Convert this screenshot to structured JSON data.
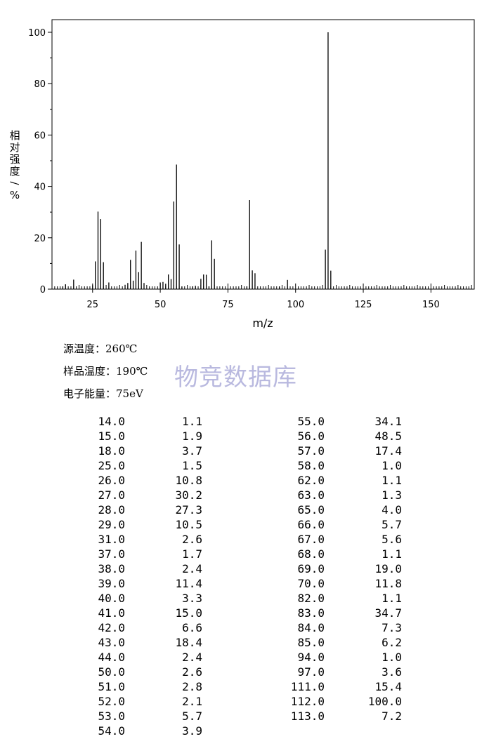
{
  "chart_data": {
    "type": "bar",
    "xlabel": "m/z",
    "ylabel": "相对强度/%",
    "xlim": [
      10,
      166
    ],
    "ylim": [
      0,
      105
    ],
    "x_ticks": [
      25,
      50,
      75,
      100,
      125,
      150
    ],
    "y_ticks": [
      0,
      20,
      40,
      60,
      80,
      100
    ],
    "x_tick_labels": [
      "25",
      "50",
      "75",
      "100",
      "125",
      "150"
    ],
    "y_tick_labels": [
      "0",
      "20",
      "40",
      "60",
      "80",
      "100"
    ],
    "grid": false,
    "x": [
      14,
      15,
      18,
      25,
      26,
      27,
      28,
      29,
      31,
      37,
      38,
      39,
      40,
      41,
      42,
      43,
      44,
      50,
      51,
      52,
      53,
      54,
      55,
      56,
      57,
      58,
      62,
      63,
      65,
      66,
      67,
      68,
      69,
      70,
      82,
      83,
      84,
      85,
      94,
      97,
      111,
      112,
      113
    ],
    "values": [
      1.1,
      1.9,
      3.7,
      1.5,
      10.8,
      30.2,
      27.3,
      10.5,
      2.6,
      1.7,
      2.4,
      11.4,
      3.3,
      15.0,
      6.6,
      18.4,
      2.4,
      2.6,
      2.8,
      2.1,
      5.7,
      3.9,
      34.1,
      48.5,
      17.4,
      1.0,
      1.1,
      1.3,
      4.0,
      5.7,
      5.6,
      1.1,
      19.0,
      11.8,
      1.1,
      34.7,
      7.3,
      6.2,
      1.0,
      3.6,
      15.4,
      100.0,
      7.2
    ]
  },
  "conditions": {
    "source_temp": "源温度：260℃",
    "sample_temp": "样品温度：190℃",
    "electron_energy": "电子能量：75eV"
  },
  "watermark": "物竞数据库",
  "peak_table": {
    "left": [
      {
        "mz": "14.0",
        "abundance": "1.1"
      },
      {
        "mz": "15.0",
        "abundance": "1.9"
      },
      {
        "mz": "18.0",
        "abundance": "3.7"
      },
      {
        "mz": "25.0",
        "abundance": "1.5"
      },
      {
        "mz": "26.0",
        "abundance": "10.8"
      },
      {
        "mz": "27.0",
        "abundance": "30.2"
      },
      {
        "mz": "28.0",
        "abundance": "27.3"
      },
      {
        "mz": "29.0",
        "abundance": "10.5"
      },
      {
        "mz": "31.0",
        "abundance": "2.6"
      },
      {
        "mz": "37.0",
        "abundance": "1.7"
      },
      {
        "mz": "38.0",
        "abundance": "2.4"
      },
      {
        "mz": "39.0",
        "abundance": "11.4"
      },
      {
        "mz": "40.0",
        "abundance": "3.3"
      },
      {
        "mz": "41.0",
        "abundance": "15.0"
      },
      {
        "mz": "42.0",
        "abundance": "6.6"
      },
      {
        "mz": "43.0",
        "abundance": "18.4"
      },
      {
        "mz": "44.0",
        "abundance": "2.4"
      },
      {
        "mz": "50.0",
        "abundance": "2.6"
      },
      {
        "mz": "51.0",
        "abundance": "2.8"
      },
      {
        "mz": "52.0",
        "abundance": "2.1"
      },
      {
        "mz": "53.0",
        "abundance": "5.7"
      },
      {
        "mz": "54.0",
        "abundance": "3.9"
      }
    ],
    "right": [
      {
        "mz": "55.0",
        "abundance": "34.1"
      },
      {
        "mz": "56.0",
        "abundance": "48.5"
      },
      {
        "mz": "57.0",
        "abundance": "17.4"
      },
      {
        "mz": "58.0",
        "abundance": "1.0"
      },
      {
        "mz": "62.0",
        "abundance": "1.1"
      },
      {
        "mz": "63.0",
        "abundance": "1.3"
      },
      {
        "mz": "65.0",
        "abundance": "4.0"
      },
      {
        "mz": "66.0",
        "abundance": "5.7"
      },
      {
        "mz": "67.0",
        "abundance": "5.6"
      },
      {
        "mz": "68.0",
        "abundance": "1.1"
      },
      {
        "mz": "69.0",
        "abundance": "19.0"
      },
      {
        "mz": "70.0",
        "abundance": "11.8"
      },
      {
        "mz": "82.0",
        "abundance": "1.1"
      },
      {
        "mz": "83.0",
        "abundance": "34.7"
      },
      {
        "mz": "84.0",
        "abundance": "7.3"
      },
      {
        "mz": "85.0",
        "abundance": "6.2"
      },
      {
        "mz": "94.0",
        "abundance": "1.0"
      },
      {
        "mz": "97.0",
        "abundance": "3.6"
      },
      {
        "mz": "111.0",
        "abundance": "15.4"
      },
      {
        "mz": "112.0",
        "abundance": "100.0"
      },
      {
        "mz": "113.0",
        "abundance": "7.2"
      }
    ]
  }
}
